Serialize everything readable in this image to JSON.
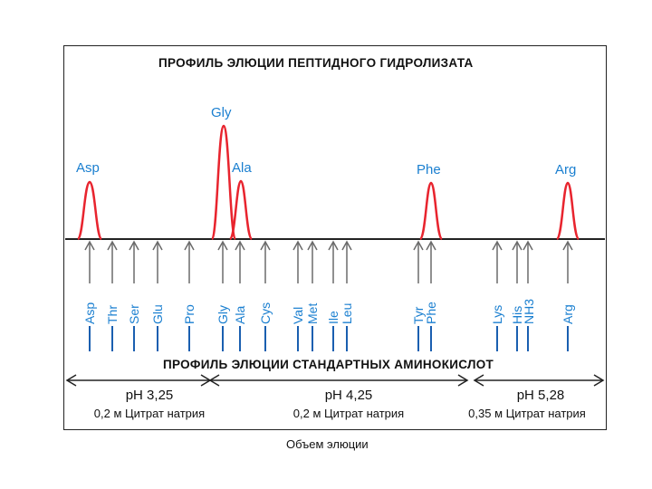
{
  "title_top": "ПРОФИЛЬ ЭЛЮЦИИ ПЕПТИДНОГО ГИДРОЛИЗАТА",
  "title_bottom": "ПРОФИЛЬ ЭЛЮЦИИ СТАНДАРТНЫХ АМИНОКИСЛОТ",
  "volume_label": "Объем элюции",
  "peaks": [
    "Asp",
    "Gly",
    "Ala",
    "Phe",
    "Arg"
  ],
  "standards": [
    "Asp",
    "Thr",
    "Ser",
    "Glu",
    "Pro",
    "Gly",
    "Ala",
    "Cys",
    "Val",
    "Met",
    "Ile",
    "Leu",
    "Tyr",
    "Phe",
    "Lys",
    "His",
    "NH3",
    "Arg"
  ],
  "buffers": [
    {
      "ph": "pH 3,25",
      "solution": "0,2 м Цитрат натрия"
    },
    {
      "ph": "pH 4,25",
      "solution": "0,2 м Цитрат натрия"
    },
    {
      "ph": "pH 5,28",
      "solution": "0,35 м Цитрат натрия"
    }
  ],
  "colors": {
    "peak": "#e8242e",
    "label": "#1a7fd0",
    "line": "#222222"
  }
}
